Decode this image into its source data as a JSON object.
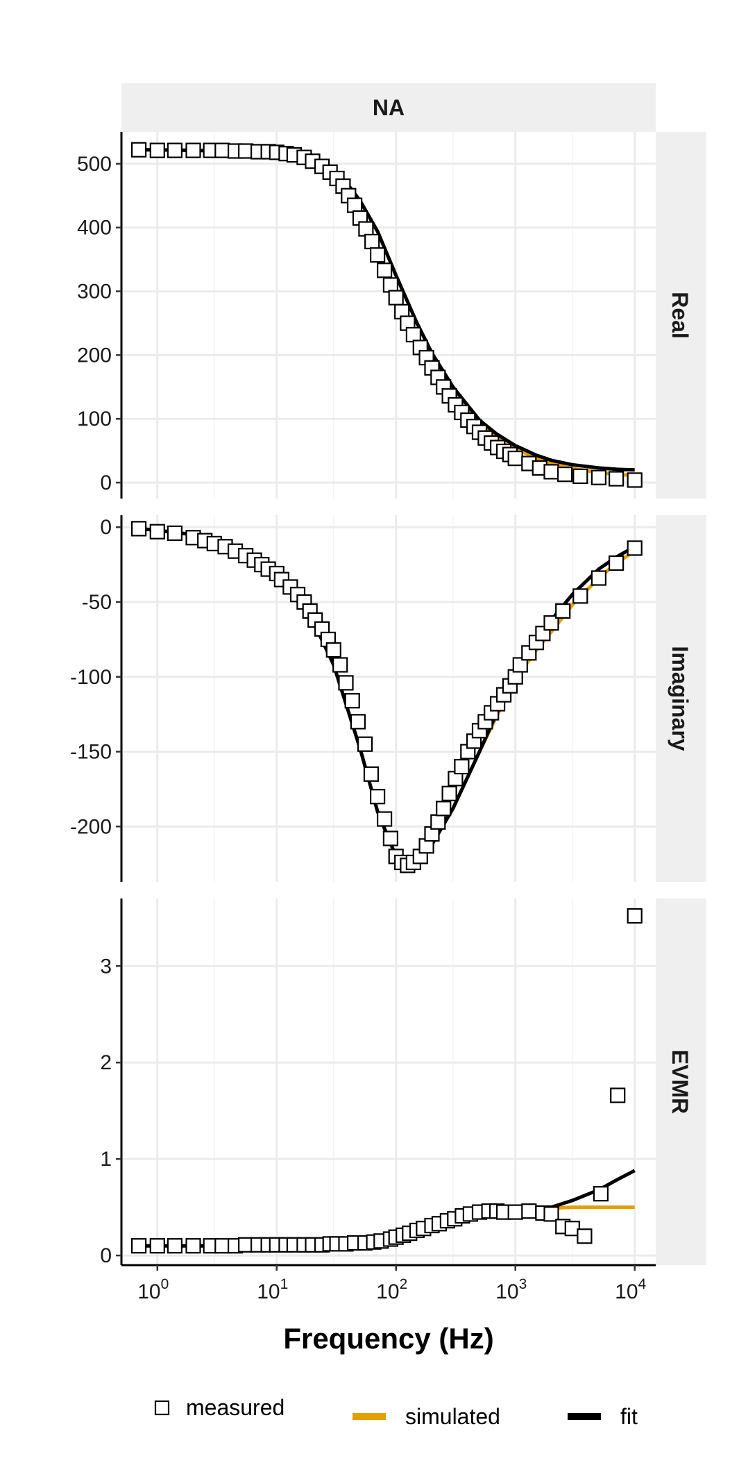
{
  "chart_data": {
    "type": "scatter",
    "facet_title": "NA",
    "xlabel": "Frequency (Hz)",
    "x_scale": "log10",
    "xlim": [
      0.5,
      15000
    ],
    "x_ticks": [
      1,
      10,
      100,
      1000,
      10000
    ],
    "x_tick_labels": [
      {
        "base": "10",
        "exp": "0"
      },
      {
        "base": "10",
        "exp": "1"
      },
      {
        "base": "10",
        "exp": "2"
      },
      {
        "base": "10",
        "exp": "3"
      },
      {
        "base": "10",
        "exp": "4"
      }
    ],
    "grid": true,
    "legend": {
      "position": "bottom",
      "entries": [
        {
          "key": "measured",
          "label": "measured",
          "symbol": "open-square",
          "color": "#000000"
        },
        {
          "key": "simulated",
          "label": "simulated",
          "symbol": "line",
          "color": "#E69F00"
        },
        {
          "key": "fit",
          "label": "fit",
          "symbol": "line",
          "color": "#000000"
        }
      ]
    },
    "colors": {
      "simulated": "#E69F00",
      "fit": "#000000",
      "measured": "#000000",
      "strip_bg": "#EFEFEF",
      "grid": "#EBEBEB"
    },
    "panels": [
      {
        "name": "Real",
        "ylim": [
          -25,
          550
        ],
        "y_ticks": [
          0,
          100,
          200,
          300,
          400,
          500
        ],
        "y_tick_labels": [
          "0",
          "100",
          "200",
          "300",
          "400",
          "500"
        ],
        "measured": {
          "x": [
            0.7,
            1,
            1.4,
            2,
            2.8,
            3.5,
            4.5,
            5.5,
            7,
            8.5,
            10,
            12,
            14,
            17,
            20,
            24,
            28,
            32,
            36,
            40,
            45,
            50,
            56,
            63,
            70,
            80,
            90,
            100,
            112,
            125,
            140,
            160,
            180,
            200,
            225,
            250,
            280,
            315,
            355,
            400,
            450,
            500,
            560,
            630,
            710,
            800,
            900,
            1000,
            1300,
            1600,
            2000,
            2600,
            3500,
            5000,
            7000,
            10000
          ],
          "y": [
            522,
            521,
            521,
            521,
            521,
            521,
            520,
            520,
            519,
            519,
            518,
            516,
            514,
            510,
            504,
            496,
            487,
            477,
            465,
            450,
            435,
            415,
            398,
            378,
            357,
            333,
            310,
            290,
            268,
            250,
            232,
            212,
            196,
            180,
            165,
            150,
            136,
            122,
            110,
            98,
            88,
            79,
            70,
            62,
            55,
            49,
            44,
            38,
            30,
            23,
            17,
            13,
            10,
            8,
            6,
            4
          ]
        },
        "simulated": {
          "x": [
            0.7,
            1,
            2,
            5,
            10,
            15,
            20,
            30,
            40,
            50,
            70,
            100,
            150,
            200,
            300,
            500,
            700,
            1000,
            1500,
            2000,
            3000,
            5000,
            7000,
            10000
          ],
          "y": [
            522,
            522,
            521,
            520,
            518,
            514,
            508,
            490,
            466,
            442,
            394,
            325,
            250,
            203,
            148,
            95,
            72,
            54,
            38,
            30,
            22,
            16,
            13,
            11
          ]
        },
        "fit": {
          "x": [
            0.7,
            1,
            2,
            5,
            10,
            15,
            20,
            30,
            40,
            50,
            70,
            100,
            150,
            200,
            300,
            500,
            700,
            1000,
            1500,
            2000,
            3000,
            5000,
            7000,
            10000
          ],
          "y": [
            522,
            522,
            521,
            520,
            518,
            514,
            508,
            490,
            466,
            442,
            394,
            325,
            250,
            203,
            150,
            98,
            76,
            58,
            43,
            35,
            28,
            23,
            21,
            20
          ]
        }
      },
      {
        "name": "Imaginary",
        "ylim": [
          -237,
          8
        ],
        "y_ticks": [
          0,
          -50,
          -100,
          -150,
          -200
        ],
        "y_tick_labels": [
          "0",
          "-50",
          "-100",
          "-150",
          "-200"
        ],
        "measured": {
          "x": [
            0.7,
            1,
            1.4,
            2,
            2.5,
            3,
            3.7,
            4.5,
            5.5,
            6.5,
            7.5,
            8.5,
            10,
            11,
            13,
            15,
            17,
            19,
            21,
            24,
            27,
            30,
            34,
            38,
            43,
            48,
            55,
            62,
            70,
            80,
            90,
            100,
            112,
            125,
            140,
            160,
            180,
            200,
            225,
            250,
            280,
            315,
            355,
            400,
            450,
            500,
            560,
            630,
            710,
            800,
            900,
            1000,
            1100,
            1300,
            1500,
            1700,
            2000,
            2500,
            3500,
            5000,
            7000,
            10000
          ],
          "y": [
            -1,
            -3,
            -4,
            -7,
            -9,
            -11,
            -13,
            -16,
            -19,
            -22,
            -25,
            -28,
            -31,
            -35,
            -40,
            -45,
            -50,
            -56,
            -62,
            -68,
            -75,
            -82,
            -92,
            -104,
            -116,
            -130,
            -145,
            -165,
            -180,
            -195,
            -208,
            -220,
            -224,
            -226,
            -224,
            -220,
            -213,
            -205,
            -197,
            -188,
            -178,
            -168,
            -160,
            -150,
            -143,
            -136,
            -130,
            -124,
            -118,
            -112,
            -106,
            -100,
            -92,
            -84,
            -77,
            -71,
            -64,
            -56,
            -46,
            -34,
            -24,
            -14
          ]
        },
        "simulated": {
          "x": [
            0.7,
            1,
            2,
            5,
            10,
            20,
            30,
            50,
            70,
            100,
            130,
            160,
            200,
            300,
            500,
            700,
            1000,
            1500,
            2000,
            3000,
            5000,
            7000,
            10000
          ],
          "y": [
            -1,
            -2,
            -5,
            -17,
            -32,
            -62,
            -92,
            -148,
            -190,
            -220,
            -226,
            -222,
            -212,
            -188,
            -150,
            -126,
            -102,
            -82,
            -70,
            -52,
            -34,
            -24,
            -16
          ]
        },
        "fit": {
          "x": [
            0.7,
            1,
            2,
            5,
            10,
            20,
            30,
            50,
            70,
            100,
            130,
            160,
            200,
            300,
            500,
            700,
            1000,
            1500,
            2000,
            3000,
            5000,
            7000,
            10000
          ],
          "y": [
            -1,
            -2,
            -5,
            -17,
            -32,
            -62,
            -92,
            -148,
            -190,
            -220,
            -226,
            -222,
            -212,
            -188,
            -150,
            -124,
            -98,
            -76,
            -62,
            -45,
            -28,
            -20,
            -13
          ]
        }
      },
      {
        "name": "EVMR",
        "ylim": [
          -0.1,
          3.7
        ],
        "y_ticks": [
          0,
          1,
          2,
          3
        ],
        "y_tick_labels": [
          "0",
          "1",
          "2",
          "3"
        ],
        "measured": {
          "x": [
            0.7,
            1,
            1.4,
            2,
            2.8,
            3.5,
            4.5,
            5.5,
            7,
            8.5,
            10,
            12,
            14,
            17,
            20,
            24,
            28,
            32,
            38,
            45,
            55,
            65,
            75,
            90,
            100,
            115,
            130,
            150,
            170,
            200,
            230,
            270,
            310,
            360,
            420,
            500,
            600,
            700,
            800,
            1000,
            1300,
            1700,
            2000,
            2500,
            3000,
            3800,
            5200,
            7200,
            10000
          ],
          "y": [
            0.1,
            0.1,
            0.1,
            0.1,
            0.1,
            0.1,
            0.1,
            0.11,
            0.11,
            0.11,
            0.11,
            0.11,
            0.11,
            0.11,
            0.11,
            0.11,
            0.12,
            0.12,
            0.12,
            0.13,
            0.13,
            0.14,
            0.15,
            0.17,
            0.19,
            0.21,
            0.23,
            0.26,
            0.28,
            0.31,
            0.33,
            0.36,
            0.38,
            0.41,
            0.43,
            0.45,
            0.46,
            0.46,
            0.45,
            0.45,
            0.46,
            0.44,
            0.43,
            0.3,
            0.28,
            0.2,
            0.64,
            1.66,
            3.52
          ]
        },
        "simulated": {
          "x": [
            0.7,
            1,
            2,
            5,
            10,
            20,
            30,
            50,
            70,
            100,
            150,
            200,
            300,
            500,
            700,
            1000,
            1500,
            2000,
            3000,
            5000,
            7000,
            10000
          ],
          "y": [
            0.1,
            0.1,
            0.1,
            0.1,
            0.11,
            0.11,
            0.12,
            0.13,
            0.15,
            0.19,
            0.26,
            0.31,
            0.37,
            0.43,
            0.46,
            0.47,
            0.48,
            0.49,
            0.5,
            0.5,
            0.5,
            0.5
          ]
        },
        "fit": {
          "x": [
            0.7,
            1,
            2,
            5,
            10,
            20,
            30,
            50,
            70,
            100,
            150,
            200,
            300,
            500,
            700,
            1000,
            1500,
            2000,
            3000,
            5000,
            7000,
            10000
          ],
          "y": [
            0.1,
            0.1,
            0.1,
            0.1,
            0.11,
            0.11,
            0.12,
            0.13,
            0.15,
            0.19,
            0.26,
            0.31,
            0.37,
            0.43,
            0.46,
            0.47,
            0.48,
            0.5,
            0.57,
            0.68,
            0.78,
            0.88
          ]
        }
      }
    ]
  }
}
